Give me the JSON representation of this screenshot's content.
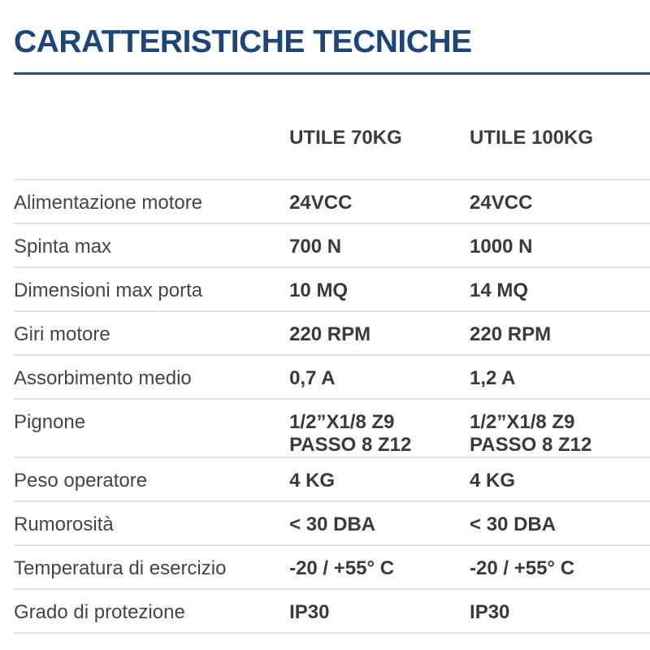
{
  "title": "CARATTERISTICHE TECNICHE",
  "columns": [
    "",
    "UTILE 70KG",
    "UTILE 100KG"
  ],
  "rows": [
    {
      "label": "Alimentazione motore",
      "values": [
        [
          "24VCC"
        ],
        [
          "24VCC"
        ]
      ]
    },
    {
      "label": "Spinta max",
      "values": [
        [
          "700 N"
        ],
        [
          "1000 N"
        ]
      ]
    },
    {
      "label": "Dimensioni max porta",
      "values": [
        [
          "10 MQ"
        ],
        [
          "14 MQ"
        ]
      ]
    },
    {
      "label": "Giri motore",
      "values": [
        [
          "220 RPM"
        ],
        [
          "220 RPM"
        ]
      ]
    },
    {
      "label": "Assorbimento medio",
      "values": [
        [
          "0,7 A"
        ],
        [
          "1,2 A"
        ]
      ]
    },
    {
      "label": "Pignone",
      "values": [
        [
          "1/2”X1/8 Z9",
          "PASSO 8 Z12"
        ],
        [
          "1/2”X1/8 Z9",
          "PASSO 8 Z12"
        ]
      ]
    },
    {
      "label": "Peso operatore",
      "values": [
        [
          "4 KG"
        ],
        [
          "4 KG"
        ]
      ]
    },
    {
      "label": "Rumorosità",
      "values": [
        [
          "< 30 DBA"
        ],
        [
          "< 30 DBA"
        ]
      ]
    },
    {
      "label": "Temperatura di esercizio",
      "values": [
        [
          "-20 / +55° C"
        ],
        [
          "-20 / +55° C"
        ]
      ]
    },
    {
      "label": "Grado di protezione",
      "values": [
        [
          "IP30"
        ],
        [
          "IP30"
        ]
      ]
    }
  ],
  "colors": {
    "title": "#1d4577",
    "rule": "#2c5282",
    "text": "#454545"
  }
}
